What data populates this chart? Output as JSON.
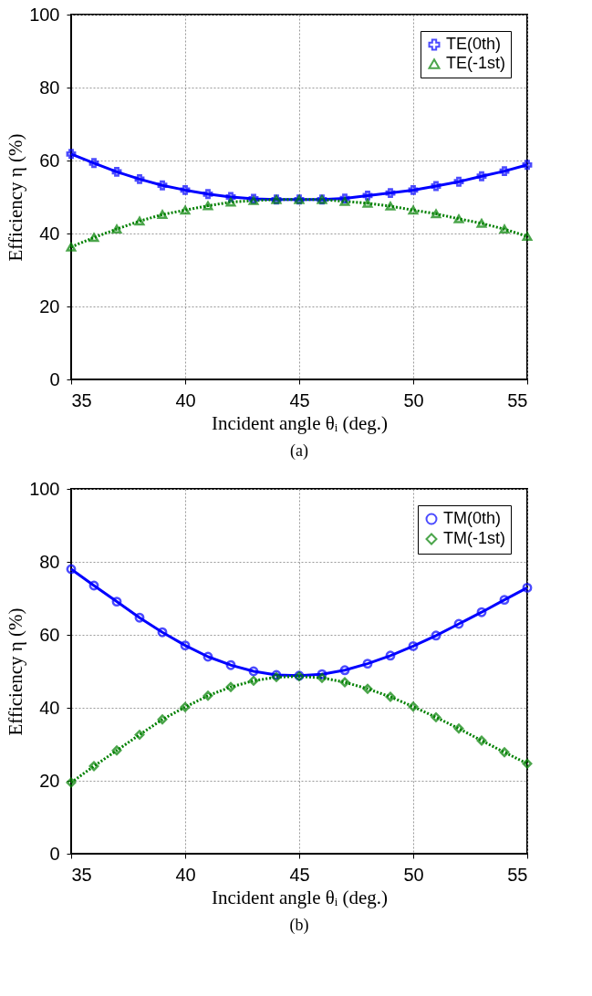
{
  "chart_data": [
    {
      "type": "line",
      "xlabel": "Incident angle θᵢ (deg.)",
      "ylabel": "Efficiency η (%)",
      "annotations": [
        "(a)"
      ],
      "x": [
        35,
        36,
        37,
        38,
        39,
        40,
        41,
        42,
        43,
        44,
        45,
        46,
        47,
        48,
        49,
        50,
        51,
        52,
        53,
        54,
        55
      ],
      "xlim": [
        35,
        55
      ],
      "xticks": [
        35,
        40,
        45,
        50,
        55
      ],
      "ylim": [
        0,
        100
      ],
      "yticks": [
        0,
        20,
        40,
        60,
        80,
        100
      ],
      "grid": true,
      "legend": "top right",
      "series": [
        {
          "name": "TE(0th)",
          "color": "#0000ff",
          "marker": "cross",
          "line_style": "solid",
          "values": [
            61.8,
            59.3,
            56.9,
            54.9,
            53.2,
            51.9,
            50.8,
            50.0,
            49.5,
            49.3,
            49.3,
            49.3,
            49.6,
            50.4,
            51.1,
            51.9,
            53.0,
            54.2,
            55.7,
            57.1,
            58.8
          ]
        },
        {
          "name": "TE(-1st)",
          "color": "#008000",
          "marker": "triangle",
          "line_style": "dotted",
          "values": [
            36.3,
            38.9,
            41.2,
            43.4,
            45.2,
            46.4,
            47.6,
            48.6,
            49.0,
            49.3,
            49.3,
            49.3,
            48.8,
            48.3,
            47.5,
            46.4,
            45.4,
            44.0,
            42.8,
            41.2,
            39.2
          ]
        }
      ]
    },
    {
      "type": "line",
      "xlabel": "Incident angle θᵢ (deg.)",
      "ylabel": "Efficiency η (%)",
      "annotations": [
        "(b)"
      ],
      "x": [
        35,
        36,
        37,
        38,
        39,
        40,
        41,
        42,
        43,
        44,
        45,
        46,
        47,
        48,
        49,
        50,
        51,
        52,
        53,
        54,
        55
      ],
      "xlim": [
        35,
        55
      ],
      "xticks": [
        35,
        40,
        45,
        50,
        55
      ],
      "ylim": [
        0,
        100
      ],
      "yticks": [
        0,
        20,
        40,
        60,
        80,
        100
      ],
      "grid": true,
      "legend": "top right",
      "series": [
        {
          "name": "TM(0th)",
          "color": "#0000ff",
          "marker": "circle",
          "line_style": "solid",
          "values": [
            78.0,
            73.5,
            69.1,
            64.7,
            60.7,
            57.1,
            54.0,
            51.7,
            50.0,
            49.0,
            48.8,
            49.2,
            50.3,
            52.1,
            54.3,
            56.9,
            59.8,
            63.0,
            66.2,
            69.6,
            72.9
          ]
        },
        {
          "name": "TM(-1st)",
          "color": "#008000",
          "marker": "diamond",
          "line_style": "dotted",
          "values": [
            19.5,
            24.0,
            28.3,
            32.6,
            36.8,
            40.2,
            43.3,
            45.7,
            47.4,
            48.4,
            48.6,
            48.2,
            47.0,
            45.2,
            43.0,
            40.3,
            37.4,
            34.3,
            31.0,
            27.8,
            24.7
          ]
        }
      ]
    }
  ]
}
